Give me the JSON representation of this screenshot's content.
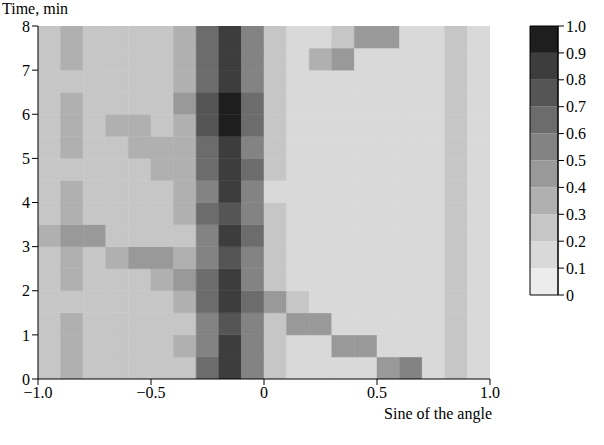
{
  "chart_data": {
    "type": "heatmap",
    "x_label": "Sine of the angle",
    "y_label": "Time, min",
    "xlim": [
      -1,
      1
    ],
    "xticks": [
      {
        "value": -1,
        "label": "−1.0"
      },
      {
        "value": -0.5,
        "label": "−0.5"
      },
      0,
      0.5,
      {
        "value": 1,
        "label": "1.0"
      }
    ],
    "ylim": [
      0,
      8
    ],
    "yticks": [
      0,
      1,
      2,
      3,
      4,
      5,
      6,
      7,
      8
    ],
    "x_bins": [
      -1,
      -0.9,
      -0.8,
      -0.7,
      -0.6,
      -0.5,
      -0.4,
      -0.3,
      -0.2,
      -0.1,
      0,
      0.1,
      0.2,
      0.3,
      0.4,
      0.5,
      0.6,
      0.7,
      0.8,
      0.9,
      1
    ],
    "y_bins": [
      0,
      0.5,
      1,
      1.5,
      2,
      2.5,
      3,
      3.5,
      4,
      4.5,
      5,
      5.5,
      6,
      6.5,
      7,
      7.5,
      8
    ],
    "cells": [
      [
        0.25,
        0.3,
        0.25,
        0.22,
        0.25,
        0.22,
        0.25,
        0.6,
        0.85,
        0.55,
        0.2,
        0.18,
        0.18,
        0.15,
        0.18,
        0.45,
        0.5,
        0.18,
        0.22,
        0.15
      ],
      [
        0.25,
        0.3,
        0.22,
        0.25,
        0.22,
        0.25,
        0.3,
        0.55,
        0.8,
        0.5,
        0.2,
        0.18,
        0.15,
        0.45,
        0.4,
        0.18,
        0.15,
        0.18,
        0.25,
        0.18
      ],
      [
        0.22,
        0.3,
        0.25,
        0.25,
        0.22,
        0.25,
        0.28,
        0.55,
        0.75,
        0.5,
        0.22,
        0.4,
        0.45,
        0.18,
        0.15,
        0.18,
        0.18,
        0.15,
        0.22,
        0.18
      ],
      [
        0.25,
        0.28,
        0.22,
        0.25,
        0.25,
        0.22,
        0.3,
        0.6,
        0.85,
        0.6,
        0.4,
        0.2,
        0.18,
        0.15,
        0.18,
        0.15,
        0.18,
        0.18,
        0.25,
        0.15
      ],
      [
        0.22,
        0.3,
        0.25,
        0.22,
        0.25,
        0.3,
        0.45,
        0.6,
        0.82,
        0.5,
        0.2,
        0.18,
        0.15,
        0.18,
        0.15,
        0.18,
        0.15,
        0.18,
        0.22,
        0.18
      ],
      [
        0.25,
        0.3,
        0.25,
        0.3,
        0.45,
        0.4,
        0.3,
        0.55,
        0.75,
        0.5,
        0.2,
        0.15,
        0.18,
        0.15,
        0.18,
        0.15,
        0.18,
        0.15,
        0.25,
        0.15
      ],
      [
        0.3,
        0.4,
        0.4,
        0.25,
        0.22,
        0.25,
        0.28,
        0.55,
        0.8,
        0.6,
        0.22,
        0.18,
        0.15,
        0.18,
        0.15,
        0.18,
        0.15,
        0.18,
        0.22,
        0.15
      ],
      [
        0.25,
        0.3,
        0.22,
        0.25,
        0.22,
        0.25,
        0.3,
        0.6,
        0.75,
        0.5,
        0.2,
        0.15,
        0.18,
        0.15,
        0.15,
        0.18,
        0.15,
        0.18,
        0.25,
        0.18
      ],
      [
        0.22,
        0.3,
        0.25,
        0.22,
        0.25,
        0.22,
        0.3,
        0.55,
        0.8,
        0.55,
        0.18,
        0.18,
        0.15,
        0.18,
        0.15,
        0.15,
        0.18,
        0.15,
        0.22,
        0.15
      ],
      [
        0.25,
        0.28,
        0.25,
        0.25,
        0.22,
        0.3,
        0.35,
        0.6,
        0.85,
        0.6,
        0.2,
        0.15,
        0.18,
        0.15,
        0.18,
        0.15,
        0.15,
        0.18,
        0.25,
        0.18
      ],
      [
        0.22,
        0.3,
        0.22,
        0.25,
        0.3,
        0.35,
        0.3,
        0.65,
        0.85,
        0.55,
        0.2,
        0.18,
        0.15,
        0.18,
        0.15,
        0.18,
        0.15,
        0.15,
        0.22,
        0.15
      ],
      [
        0.25,
        0.3,
        0.25,
        0.3,
        0.35,
        0.25,
        0.35,
        0.7,
        0.9,
        0.6,
        0.22,
        0.15,
        0.18,
        0.15,
        0.15,
        0.18,
        0.18,
        0.15,
        0.25,
        0.18
      ],
      [
        0.25,
        0.3,
        0.25,
        0.25,
        0.25,
        0.28,
        0.4,
        0.7,
        0.92,
        0.6,
        0.2,
        0.18,
        0.15,
        0.18,
        0.15,
        0.15,
        0.15,
        0.18,
        0.22,
        0.15
      ],
      [
        0.22,
        0.28,
        0.25,
        0.22,
        0.25,
        0.25,
        0.35,
        0.65,
        0.88,
        0.55,
        0.2,
        0.15,
        0.18,
        0.15,
        0.18,
        0.15,
        0.18,
        0.15,
        0.25,
        0.15
      ],
      [
        0.25,
        0.3,
        0.22,
        0.25,
        0.22,
        0.25,
        0.3,
        0.6,
        0.8,
        0.5,
        0.22,
        0.18,
        0.3,
        0.4,
        0.18,
        0.15,
        0.15,
        0.18,
        0.22,
        0.18
      ],
      [
        0.22,
        0.3,
        0.25,
        0.22,
        0.25,
        0.22,
        0.3,
        0.6,
        0.85,
        0.55,
        0.2,
        0.18,
        0.18,
        0.25,
        0.45,
        0.4,
        0.15,
        0.15,
        0.25,
        0.15
      ]
    ],
    "colorbar": {
      "range": [
        0,
        1
      ],
      "ticks": [
        0,
        0.1,
        0.2,
        0.3,
        0.4,
        0.5,
        0.6,
        0.7,
        0.8,
        0.9,
        {
          "value": 1,
          "label": "1.0"
        }
      ],
      "colors": [
        "#ececec",
        "#d9d9d9",
        "#c6c6c6",
        "#b0b0b0",
        "#999999",
        "#838383",
        "#6c6c6c",
        "#555555",
        "#3d3d3d",
        "#1e1e1e"
      ]
    }
  }
}
